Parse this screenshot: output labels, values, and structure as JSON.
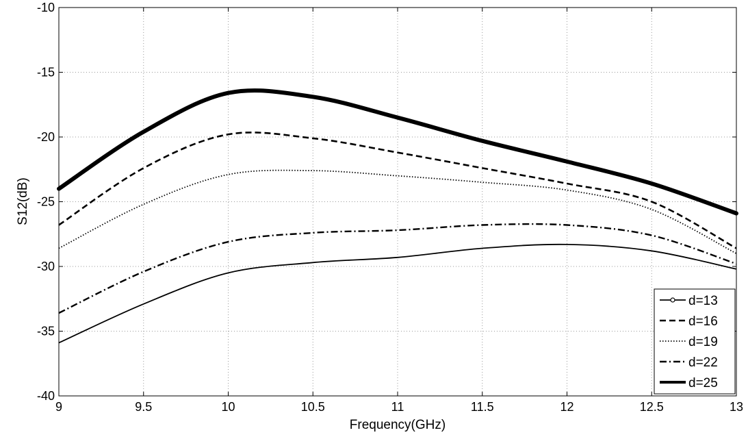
{
  "chart_data": {
    "type": "line",
    "title": "",
    "xlabel": "Frequency(GHz)",
    "ylabel": "S12(dB)",
    "xlim": [
      9,
      13
    ],
    "ylim": [
      -40,
      -10
    ],
    "xticks": [
      9,
      9.5,
      10,
      10.5,
      11,
      11.5,
      12,
      12.5,
      13
    ],
    "xtick_labels": [
      "9",
      "9.5",
      "10",
      "10.5",
      "11",
      "11.5",
      "12",
      "12.5",
      "13"
    ],
    "yticks": [
      -40,
      -35,
      -30,
      -25,
      -20,
      -15,
      -10
    ],
    "ytick_labels": [
      "-40",
      "-35",
      "-30",
      "-25",
      "-20",
      "-15",
      "-10"
    ],
    "grid": true,
    "legend_position": "bottom-right",
    "series": [
      {
        "name": "d=13",
        "style": "solid-thin-circle",
        "x": [
          9,
          9.5,
          10,
          10.5,
          11,
          11.5,
          12,
          12.5,
          13
        ],
        "y": [
          -35.9,
          -32.9,
          -30.5,
          -29.7,
          -29.3,
          -28.6,
          -28.3,
          -28.8,
          -30.2
        ]
      },
      {
        "name": "d=16",
        "style": "dashed",
        "x": [
          9,
          9.5,
          10,
          10.5,
          11,
          11.5,
          12,
          12.5,
          13
        ],
        "y": [
          -26.8,
          -22.4,
          -19.8,
          -20.1,
          -21.2,
          -22.4,
          -23.6,
          -25.0,
          -28.6
        ]
      },
      {
        "name": "d=19",
        "style": "dotted",
        "x": [
          9,
          9.5,
          10,
          10.5,
          11,
          11.5,
          12,
          12.5,
          13
        ],
        "y": [
          -28.6,
          -25.2,
          -22.9,
          -22.6,
          -23.0,
          -23.5,
          -24.1,
          -25.6,
          -29.0
        ]
      },
      {
        "name": "d=22",
        "style": "dashdot",
        "x": [
          9,
          9.5,
          10,
          10.5,
          11,
          11.5,
          12,
          12.5,
          13
        ],
        "y": [
          -33.6,
          -30.4,
          -28.1,
          -27.4,
          -27.2,
          -26.8,
          -26.8,
          -27.6,
          -29.8
        ]
      },
      {
        "name": "d=25",
        "style": "solid-thick",
        "x": [
          9,
          9.5,
          10,
          10.5,
          11,
          11.5,
          12,
          12.5,
          13
        ],
        "y": [
          -24.0,
          -19.6,
          -16.6,
          -16.9,
          -18.5,
          -20.3,
          -21.9,
          -23.6,
          -25.9
        ]
      }
    ]
  }
}
